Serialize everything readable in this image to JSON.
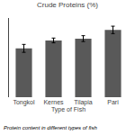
{
  "chart_data": {
    "type": "bar",
    "title": "Crude Proteins (%)",
    "xlabel": "Type of Fish",
    "annotations": [
      "Protein content in different types of fish"
    ],
    "categories": [
      "Tongkol",
      "Kernes",
      "Tilapia",
      "Pari"
    ],
    "values": [
      18.5,
      21.5,
      22.2,
      25.5
    ],
    "errors": [
      1.5,
      0.9,
      1.1,
      1.4
    ],
    "color": "#595959",
    "ylim": [
      0,
      30
    ],
    "yticks": [],
    "grid": false,
    "tick_labels": "x"
  }
}
